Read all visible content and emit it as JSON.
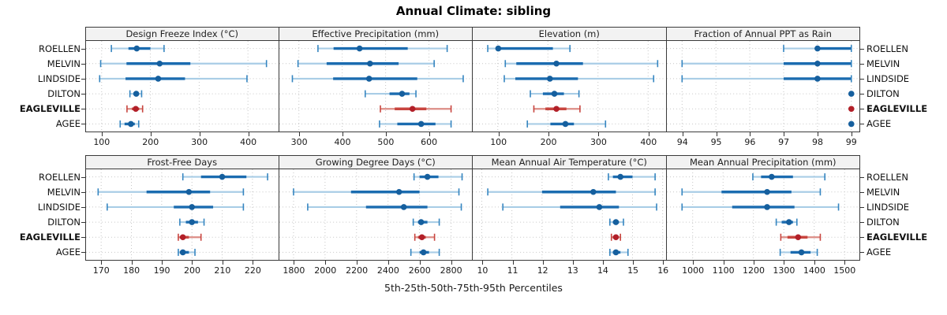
{
  "title": "Annual Climate: sibling",
  "caption": "5th-25th-50th-75th-95th Percentiles",
  "sites": [
    "ROELLEN",
    "MELVIN",
    "LINDSIDE",
    "DILTON",
    "EAGLEVILLE",
    "AGEE"
  ],
  "highlight_site": "EAGLEVILLE",
  "colors": {
    "blue_dark": "#1b6cb0",
    "blue_light": "#a9cde6",
    "blue_cap": "#3585c0",
    "blue_dot": "#155f9e",
    "red_dark": "#c8453f",
    "red_light": "#dc8d86",
    "red_cap": "#c8453f",
    "red_dot": "#b21f28",
    "grid": "#c6c6c6",
    "panel_border": "#3a3a3a",
    "header_bg": "#f2f2f2",
    "text": "#1a1a1a"
  },
  "chart_data": {
    "type": "dotplot-percentiles",
    "percentile_labels": [
      "5th",
      "25th",
      "50th",
      "75th",
      "95th"
    ],
    "grid": "dotted",
    "legend_position": "none",
    "panels": [
      {
        "title": "Design Freeze Index (°C)",
        "xlim": [
          68,
          462
        ],
        "ticks": [
          100,
          200,
          300,
          400
        ],
        "values": [
          [
            120,
            155,
            172,
            200,
            228
          ],
          [
            98,
            151,
            219,
            282,
            438
          ],
          [
            96,
            149,
            216,
            271,
            398
          ],
          [
            158,
            165,
            171,
            176,
            182
          ],
          [
            152,
            162,
            170,
            177,
            184
          ],
          [
            138,
            147,
            160,
            168,
            176
          ]
        ]
      },
      {
        "title": "Effective Precipitation (mm)",
        "xlim": [
          255,
          700
        ],
        "ticks": [
          300,
          400,
          500,
          600
        ],
        "values": [
          [
            344,
            380,
            440,
            551,
            642
          ],
          [
            298,
            364,
            464,
            530,
            612
          ],
          [
            285,
            379,
            462,
            573,
            679
          ],
          [
            453,
            509,
            538,
            555,
            570
          ],
          [
            488,
            521,
            562,
            594,
            651
          ],
          [
            486,
            527,
            582,
            615,
            651
          ]
        ]
      },
      {
        "title": "Elevation (m)",
        "xlim": [
          50,
          435
        ],
        "ticks": [
          100,
          200,
          300,
          400
        ],
        "values": [
          [
            80,
            98,
            101,
            210,
            244
          ],
          [
            115,
            137,
            217,
            270,
            419
          ],
          [
            113,
            135,
            204,
            260,
            411
          ],
          [
            165,
            190,
            213,
            232,
            262
          ],
          [
            172,
            195,
            217,
            237,
            264
          ],
          [
            159,
            205,
            235,
            252,
            315
          ]
        ]
      },
      {
        "title": "Fraction of Annual PPT as Rain",
        "xlim": [
          93.55,
          99.25
        ],
        "ticks": [
          94,
          95,
          96,
          97,
          98,
          99
        ],
        "values": [
          [
            97,
            98,
            98,
            99,
            99
          ],
          [
            94,
            97,
            98,
            99,
            99
          ],
          [
            94,
            97,
            98,
            99,
            99
          ],
          [
            99,
            99,
            99,
            99,
            99
          ],
          [
            99,
            99,
            99,
            99,
            99
          ],
          [
            99,
            99,
            99,
            99,
            99
          ]
        ]
      },
      {
        "title": "Frost-Free Days",
        "xlim": [
          165,
          228.5
        ],
        "ticks": [
          170,
          180,
          190,
          200,
          210,
          220
        ],
        "values": [
          [
            197,
            203,
            210,
            218,
            225
          ],
          [
            169,
            185,
            199,
            206,
            217
          ],
          [
            172,
            194,
            200,
            207,
            217
          ],
          [
            196,
            198,
            200,
            202,
            204
          ],
          [
            195.5,
            196,
            197,
            199,
            203
          ],
          [
            195.5,
            196,
            197,
            199,
            201
          ]
        ]
      },
      {
        "title": "Growing Degree Days (°C)",
        "xlim": [
          1710,
          2935
        ],
        "ticks": [
          1800,
          2000,
          2200,
          2400,
          2600,
          2800
        ],
        "values": [
          [
            2565,
            2600,
            2650,
            2720,
            2870
          ],
          [
            1800,
            2165,
            2470,
            2600,
            2850
          ],
          [
            1890,
            2260,
            2500,
            2650,
            2865
          ],
          [
            2560,
            2590,
            2610,
            2650,
            2725
          ],
          [
            2570,
            2590,
            2615,
            2640,
            2695
          ],
          [
            2545,
            2600,
            2625,
            2660,
            2725
          ]
        ]
      },
      {
        "title": "Mean Annual Air Temperature (°C)",
        "xlim": [
          9.7,
          16.1
        ],
        "ticks": [
          10,
          11,
          12,
          13,
          14,
          15,
          16
        ],
        "values": [
          [
            14.2,
            14.35,
            14.6,
            15.0,
            15.75
          ],
          [
            10.2,
            12.0,
            13.7,
            14.45,
            15.75
          ],
          [
            10.7,
            12.6,
            13.9,
            14.55,
            15.8
          ],
          [
            14.25,
            14.35,
            14.45,
            14.55,
            14.7
          ],
          [
            14.3,
            14.35,
            14.45,
            14.5,
            14.6
          ],
          [
            14.25,
            14.35,
            14.45,
            14.6,
            14.85
          ]
        ]
      },
      {
        "title": "Mean Annual Precipitation (mm)",
        "xlim": [
          915,
          1550
        ],
        "ticks": [
          1000,
          1100,
          1200,
          1300,
          1400,
          1500
        ],
        "values": [
          [
            1198,
            1225,
            1260,
            1330,
            1435
          ],
          [
            965,
            1095,
            1245,
            1325,
            1420
          ],
          [
            965,
            1130,
            1245,
            1335,
            1480
          ],
          [
            1275,
            1293,
            1317,
            1330,
            1343
          ],
          [
            1290,
            1312,
            1347,
            1378,
            1420
          ],
          [
            1288,
            1322,
            1358,
            1388,
            1410
          ]
        ]
      }
    ]
  }
}
